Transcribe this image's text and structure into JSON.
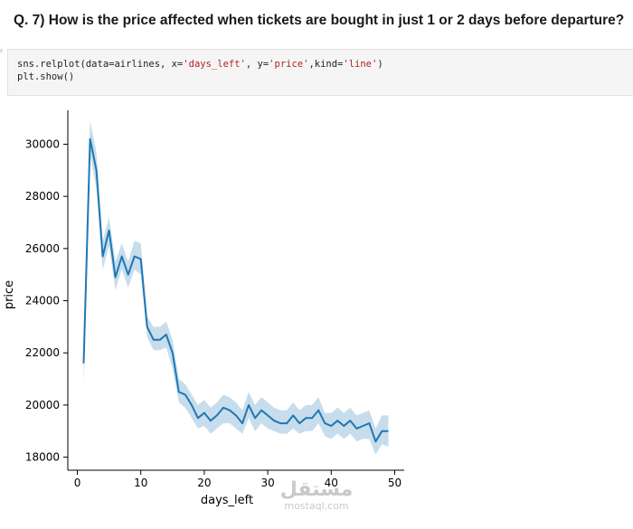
{
  "question": "Q. 7) How is the price affected when tickets are bought in just 1 or 2 days before departure?",
  "code": {
    "line1_pre": "sns.relplot(data=airlines, x=",
    "line1_s1": "'days_left'",
    "line1_mid1": ", y=",
    "line1_s2": "'price'",
    "line1_mid2": ",kind=",
    "line1_s3": "'line'",
    "line1_post": ")",
    "line2": "plt.show()"
  },
  "watermark": {
    "logo": "مستقل",
    "url": "mostaql.com"
  },
  "chart_data": {
    "type": "line",
    "xlabel": "days_left",
    "ylabel": "price",
    "xlim": [
      -1.5,
      51.5
    ],
    "ylim": [
      17500,
      31300
    ],
    "xticks": [
      0,
      10,
      20,
      30,
      40,
      50
    ],
    "yticks": [
      18000,
      20000,
      22000,
      24000,
      26000,
      28000,
      30000
    ],
    "grid": false,
    "legend": "none",
    "colors": {
      "line": "#1f77b4",
      "band": "#1f77b4",
      "axis": "#000000"
    },
    "x": [
      1,
      2,
      3,
      4,
      5,
      6,
      7,
      8,
      9,
      10,
      11,
      12,
      13,
      14,
      15,
      16,
      17,
      18,
      19,
      20,
      21,
      22,
      23,
      24,
      25,
      26,
      27,
      28,
      29,
      30,
      31,
      32,
      33,
      34,
      35,
      36,
      37,
      38,
      39,
      40,
      41,
      42,
      43,
      44,
      45,
      46,
      47,
      48,
      49
    ],
    "y": [
      21600,
      30200,
      29000,
      25700,
      26700,
      24900,
      25700,
      25000,
      25700,
      25600,
      23000,
      22500,
      22500,
      22700,
      22000,
      20500,
      20400,
      20000,
      19500,
      19700,
      19400,
      19600,
      19900,
      19800,
      19600,
      19300,
      20000,
      19500,
      19800,
      19600,
      19400,
      19300,
      19300,
      19600,
      19300,
      19500,
      19500,
      19800,
      19300,
      19200,
      19400,
      19200,
      19400,
      19100,
      19200,
      19300,
      18600,
      19000,
      19000
    ],
    "ci_lower": [
      20700,
      29600,
      28300,
      25200,
      26100,
      24400,
      25200,
      24500,
      25200,
      25000,
      22600,
      22100,
      22100,
      22200,
      21400,
      20100,
      19900,
      19500,
      19100,
      19200,
      18900,
      19100,
      19300,
      19300,
      19100,
      18900,
      19500,
      19000,
      19300,
      19100,
      19000,
      18900,
      18900,
      19100,
      18900,
      19000,
      19000,
      19300,
      18800,
      18700,
      18900,
      18700,
      18900,
      18600,
      18700,
      18700,
      18100,
      18500,
      18400
    ],
    "ci_upper": [
      22600,
      30900,
      29700,
      26300,
      27200,
      25500,
      26200,
      25500,
      26300,
      26200,
      23400,
      23000,
      23000,
      23200,
      22500,
      21000,
      20800,
      20400,
      20000,
      20200,
      19900,
      20100,
      20400,
      20300,
      20100,
      19800,
      20500,
      20000,
      20300,
      20100,
      19900,
      19800,
      19800,
      20100,
      19800,
      20000,
      20000,
      20300,
      19700,
      19700,
      19900,
      19700,
      19900,
      19600,
      19700,
      19800,
      19100,
      19600,
      19600
    ]
  }
}
